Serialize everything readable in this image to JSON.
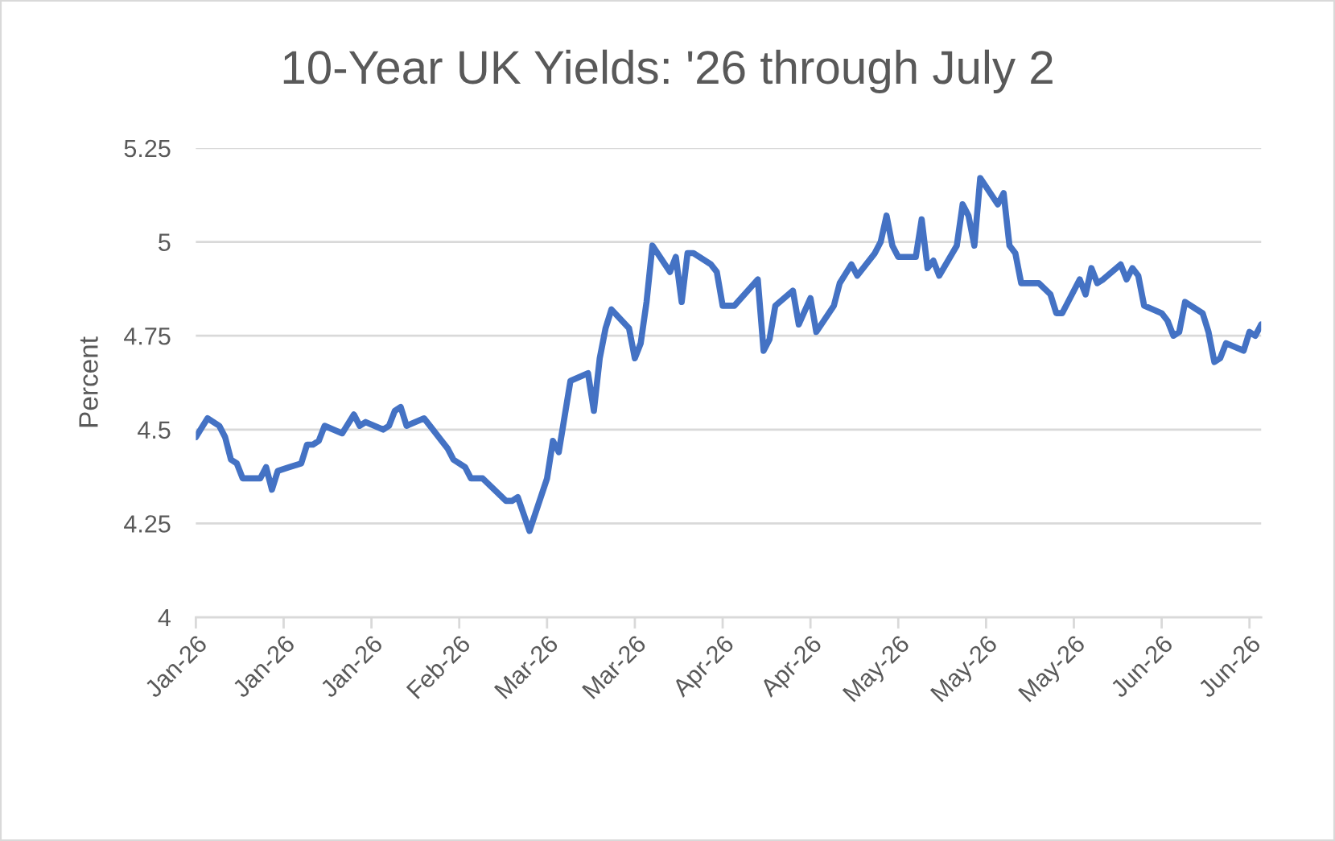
{
  "chart_data": {
    "type": "line",
    "title": "10-Year UK Yields: '26 through July 2",
    "ylabel": "Percent",
    "x": [
      "2026-01-01",
      "2026-01-03",
      "2026-01-05",
      "2026-01-06",
      "2026-01-07",
      "2026-01-08",
      "2026-01-09",
      "2026-01-12",
      "2026-01-13",
      "2026-01-14",
      "2026-01-15",
      "2026-01-17",
      "2026-01-19",
      "2026-01-20",
      "2026-01-21",
      "2026-01-22",
      "2026-01-23",
      "2026-01-26",
      "2026-01-28",
      "2026-01-29",
      "2026-01-30",
      "2026-02-02",
      "2026-02-03",
      "2026-02-04",
      "2026-02-05",
      "2026-02-06",
      "2026-02-09",
      "2026-02-10",
      "2026-02-12",
      "2026-02-13",
      "2026-02-14",
      "2026-02-16",
      "2026-02-17",
      "2026-02-19",
      "2026-02-23",
      "2026-02-24",
      "2026-02-25",
      "2026-02-27",
      "2026-03-02",
      "2026-03-03",
      "2026-03-04",
      "2026-03-06",
      "2026-03-09",
      "2026-03-10",
      "2026-03-11",
      "2026-03-12",
      "2026-03-13",
      "2026-03-16",
      "2026-03-17",
      "2026-03-18",
      "2026-03-19",
      "2026-03-20",
      "2026-03-23",
      "2026-03-24",
      "2026-03-25",
      "2026-03-26",
      "2026-03-27",
      "2026-03-30",
      "2026-03-31",
      "2026-04-01",
      "2026-04-03",
      "2026-04-07",
      "2026-04-08",
      "2026-04-09",
      "2026-04-10",
      "2026-04-13",
      "2026-04-14",
      "2026-04-16",
      "2026-04-17",
      "2026-04-20",
      "2026-04-21",
      "2026-04-23",
      "2026-04-24",
      "2026-04-27",
      "2026-04-28",
      "2026-04-29",
      "2026-04-30",
      "2026-05-01",
      "2026-05-04",
      "2026-05-05",
      "2026-05-06",
      "2026-05-07",
      "2026-05-08",
      "2026-05-11",
      "2026-05-12",
      "2026-05-13",
      "2026-05-14",
      "2026-05-15",
      "2026-05-18",
      "2026-05-19",
      "2026-05-20",
      "2026-05-21",
      "2026-05-22",
      "2026-05-25",
      "2026-05-27",
      "2026-05-28",
      "2026-05-29",
      "2026-06-01",
      "2026-06-02",
      "2026-06-03",
      "2026-06-04",
      "2026-06-05",
      "2026-06-08",
      "2026-06-09",
      "2026-06-10",
      "2026-06-11",
      "2026-06-12",
      "2026-06-15",
      "2026-06-16",
      "2026-06-17",
      "2026-06-18",
      "2026-06-19",
      "2026-06-22",
      "2026-06-23",
      "2026-06-24",
      "2026-06-25",
      "2026-06-26",
      "2026-06-29",
      "2026-06-30",
      "2026-07-01",
      "2026-07-02"
    ],
    "series": [
      {
        "color": "#4472c4",
        "values": [
          4.48,
          4.53,
          4.51,
          4.48,
          4.42,
          4.41,
          4.37,
          4.37,
          4.4,
          4.34,
          4.39,
          4.4,
          4.41,
          4.46,
          4.46,
          4.47,
          4.51,
          4.49,
          4.54,
          4.51,
          4.52,
          4.5,
          4.51,
          4.55,
          4.56,
          4.51,
          4.53,
          4.51,
          4.47,
          4.45,
          4.42,
          4.4,
          4.37,
          4.37,
          4.31,
          4.31,
          4.32,
          4.23,
          4.37,
          4.47,
          4.44,
          4.63,
          4.65,
          4.55,
          4.69,
          4.77,
          4.82,
          4.77,
          4.69,
          4.73,
          4.84,
          4.99,
          4.92,
          4.96,
          4.84,
          4.97,
          4.97,
          4.94,
          4.92,
          4.83,
          4.83,
          4.9,
          4.71,
          4.74,
          4.83,
          4.87,
          4.78,
          4.85,
          4.76,
          4.83,
          4.89,
          4.94,
          4.91,
          4.97,
          5.0,
          5.07,
          4.99,
          4.96,
          4.96,
          5.06,
          4.93,
          4.95,
          4.91,
          4.99,
          5.1,
          5.07,
          4.99,
          5.17,
          5.1,
          5.13,
          4.99,
          4.97,
          4.89,
          4.89,
          4.86,
          4.81,
          4.81,
          4.9,
          4.86,
          4.93,
          4.89,
          4.9,
          4.94,
          4.9,
          4.93,
          4.91,
          4.83,
          4.81,
          4.79,
          4.75,
          4.76,
          4.84,
          4.81,
          4.76,
          4.68,
          4.69,
          4.73,
          4.71,
          4.76,
          4.75,
          4.78
        ]
      }
    ],
    "xlim": [
      "2026-01-01",
      "2026-07-02"
    ],
    "xticks": [
      {
        "value": "2026-01-01",
        "label": "Jan-26"
      },
      {
        "value": "2026-01-16",
        "label": "Jan-26"
      },
      {
        "value": "2026-01-31",
        "label": "Jan-26"
      },
      {
        "value": "2026-02-15",
        "label": "Feb-26"
      },
      {
        "value": "2026-03-02",
        "label": "Mar-26"
      },
      {
        "value": "2026-03-17",
        "label": "Mar-26"
      },
      {
        "value": "2026-04-01",
        "label": "Apr-26"
      },
      {
        "value": "2026-04-16",
        "label": "Apr-26"
      },
      {
        "value": "2026-05-01",
        "label": "May-26"
      },
      {
        "value": "2026-05-16",
        "label": "May-26"
      },
      {
        "value": "2026-05-31",
        "label": "May-26"
      },
      {
        "value": "2026-06-15",
        "label": "Jun-26"
      },
      {
        "value": "2026-06-30",
        "label": "Jun-26"
      }
    ],
    "ylim": [
      4,
      5.25
    ],
    "yticks": [
      4,
      4.25,
      4.5,
      4.75,
      5,
      5.25
    ],
    "grid": "y",
    "line_style": "solid",
    "marker": "none"
  }
}
